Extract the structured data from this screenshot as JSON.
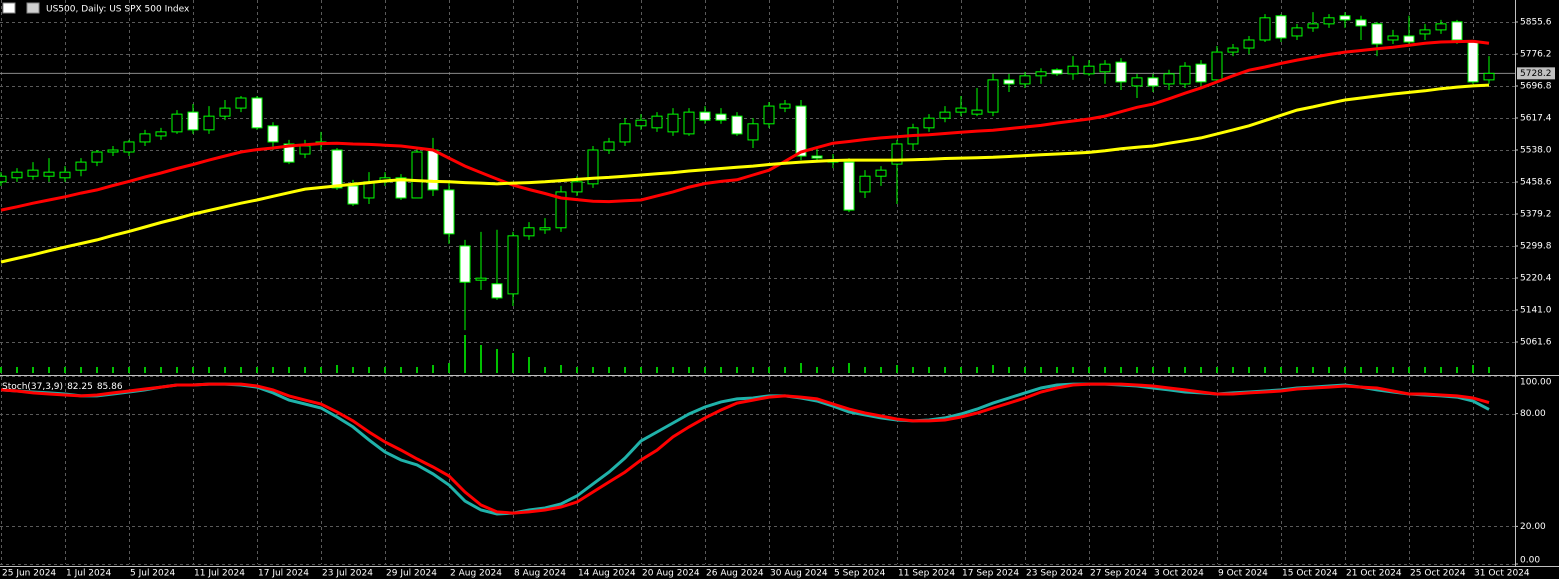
{
  "chart_data": [
    {
      "type": "candlestick",
      "title": "US500, Daily: US SPX 500 Index",
      "categories": [
        "25 Jun 2024",
        null,
        null,
        null,
        "1 Jul 2024",
        null,
        null,
        null,
        "5 Jul 2024",
        null,
        null,
        null,
        "11 Jul 2024",
        null,
        null,
        null,
        "17 Jul 2024",
        null,
        null,
        null,
        "23 Jul 2024",
        null,
        null,
        null,
        "29 Jul 2024",
        null,
        null,
        null,
        "2 Aug 2024",
        null,
        null,
        null,
        "8 Aug 2024",
        null,
        null,
        null,
        "14 Aug 2024",
        null,
        null,
        null,
        "20 Aug 2024",
        null,
        null,
        null,
        "26 Aug 2024",
        null,
        null,
        null,
        "30 Aug 2024",
        null,
        null,
        null,
        "5 Sep 2024",
        null,
        null,
        null,
        "11 Sep 2024",
        null,
        null,
        null,
        "17 Sep 2024",
        null,
        null,
        null,
        "23 Sep 2024",
        null,
        null,
        null,
        "27 Sep 2024",
        null,
        null,
        null,
        "3 Oct 2024",
        null,
        null,
        null,
        "9 Oct 2024",
        null,
        null,
        null,
        "15 Oct 2024",
        null,
        null,
        null,
        "21 Oct 2024",
        null,
        null,
        null,
        "25 Oct 2024",
        null,
        null,
        null,
        "31 Oct 2024",
        null
      ],
      "open": [
        5459,
        5469,
        5473,
        5473,
        5469,
        5488,
        5508,
        5533,
        5533,
        5558,
        5573,
        5583,
        5632,
        5588,
        5622,
        5642,
        5667,
        5598,
        5553,
        5528,
        5558,
        5538,
        5449,
        5419,
        5459,
        5469,
        5419,
        5538,
        5439,
        5300,
        5215,
        5206,
        5181,
        5325,
        5340,
        5345,
        5434,
        5454,
        5538,
        5558,
        5598,
        5593,
        5583,
        5578,
        5632,
        5627,
        5622,
        5563,
        5603,
        5642,
        5647,
        5523,
        5513,
        5508,
        5434,
        5473,
        5503,
        5553,
        5593,
        5617,
        5632,
        5627,
        5632,
        5712,
        5702,
        5722,
        5737,
        5727,
        5727,
        5732,
        5756,
        5697,
        5717,
        5702,
        5702,
        5751,
        5712,
        5781,
        5791,
        5811,
        5871,
        5821,
        5841,
        5851,
        5871,
        5861,
        5851,
        5811,
        5821,
        5826,
        5836,
        5856,
        5806,
        5712
      ],
      "high": [
        5483,
        5493,
        5508,
        5518,
        5498,
        5518,
        5538,
        5548,
        5563,
        5588,
        5593,
        5637,
        5652,
        5647,
        5662,
        5672,
        5672,
        5607,
        5563,
        5563,
        5583,
        5543,
        5464,
        5483,
        5483,
        5478,
        5543,
        5568,
        5459,
        5315,
        5335,
        5340,
        5335,
        5359,
        5369,
        5449,
        5473,
        5548,
        5568,
        5617,
        5627,
        5632,
        5642,
        5642,
        5647,
        5642,
        5632,
        5617,
        5657,
        5662,
        5662,
        5543,
        5528,
        5518,
        5488,
        5498,
        5563,
        5603,
        5627,
        5647,
        5672,
        5692,
        5727,
        5727,
        5732,
        5741,
        5741,
        5771,
        5761,
        5761,
        5766,
        5727,
        5727,
        5737,
        5756,
        5761,
        5796,
        5801,
        5821,
        5875,
        5875,
        5851,
        5880,
        5875,
        5880,
        5871,
        5856,
        5836,
        5871,
        5851,
        5861,
        5861,
        5811,
        5771
      ],
      "low": [
        5449,
        5459,
        5464,
        5459,
        5459,
        5473,
        5498,
        5523,
        5523,
        5548,
        5563,
        5578,
        5578,
        5578,
        5612,
        5632,
        5588,
        5538,
        5503,
        5518,
        5538,
        5439,
        5399,
        5404,
        5449,
        5414,
        5419,
        5424,
        5305,
        5091,
        5191,
        5166,
        5151,
        5315,
        5330,
        5335,
        5424,
        5444,
        5528,
        5548,
        5588,
        5583,
        5573,
        5573,
        5603,
        5603,
        5573,
        5543,
        5593,
        5632,
        5513,
        5508,
        5493,
        5384,
        5419,
        5449,
        5404,
        5538,
        5583,
        5607,
        5622,
        5622,
        5622,
        5682,
        5692,
        5702,
        5722,
        5712,
        5722,
        5702,
        5687,
        5667,
        5682,
        5687,
        5692,
        5697,
        5707,
        5771,
        5776,
        5806,
        5806,
        5811,
        5831,
        5841,
        5841,
        5811,
        5771,
        5801,
        5801,
        5811,
        5826,
        5801,
        5702,
        5702
      ],
      "close": [
        5473,
        5483,
        5488,
        5483,
        5483,
        5508,
        5533,
        5538,
        5558,
        5578,
        5583,
        5627,
        5588,
        5622,
        5642,
        5667,
        5593,
        5558,
        5508,
        5548,
        5558,
        5444,
        5404,
        5459,
        5469,
        5419,
        5533,
        5439,
        5330,
        5210,
        5220,
        5171,
        5325,
        5345,
        5345,
        5434,
        5459,
        5538,
        5558,
        5603,
        5612,
        5622,
        5627,
        5632,
        5612,
        5612,
        5578,
        5603,
        5647,
        5652,
        5523,
        5518,
        5508,
        5389,
        5473,
        5488,
        5553,
        5593,
        5617,
        5632,
        5642,
        5637,
        5712,
        5702,
        5722,
        5732,
        5727,
        5746,
        5746,
        5751,
        5707,
        5717,
        5697,
        5727,
        5746,
        5707,
        5781,
        5791,
        5811,
        5866,
        5816,
        5841,
        5851,
        5866,
        5861,
        5846,
        5801,
        5821,
        5806,
        5836,
        5851,
        5811,
        5707,
        5728.2
      ],
      "volume": [
        6,
        6,
        6,
        6,
        6,
        6,
        6,
        6,
        6,
        6,
        6,
        6,
        6,
        6,
        6,
        6,
        6,
        6,
        6,
        6,
        6,
        8,
        6,
        6,
        6,
        6,
        6,
        8,
        10,
        38,
        28,
        24,
        20,
        16,
        6,
        8,
        6,
        6,
        6,
        6,
        6,
        6,
        6,
        6,
        6,
        6,
        6,
        6,
        6,
        6,
        10,
        6,
        6,
        10,
        6,
        6,
        8,
        6,
        6,
        6,
        6,
        6,
        8,
        6,
        6,
        6,
        6,
        6,
        6,
        6,
        6,
        6,
        6,
        6,
        6,
        6,
        6,
        6,
        6,
        6,
        6,
        6,
        6,
        6,
        6,
        6,
        6,
        6,
        6,
        6,
        6,
        6,
        8,
        6
      ],
      "overlays": [
        {
          "color": "#ff0000",
          "values": [
            5389,
            5397,
            5406,
            5414,
            5422,
            5431,
            5439,
            5450,
            5460,
            5471,
            5481,
            5492,
            5502,
            5513,
            5523,
            5533,
            5539,
            5543,
            5548,
            5551,
            5554,
            5555,
            5553,
            5552,
            5550,
            5548,
            5543,
            5538,
            5518,
            5498,
            5482,
            5466,
            5451,
            5440,
            5430,
            5419,
            5415,
            5411,
            5410,
            5412,
            5414,
            5424,
            5434,
            5446,
            5455,
            5460,
            5464,
            5476,
            5488,
            5510,
            5533,
            5544,
            5555,
            5559,
            5564,
            5568,
            5571,
            5574,
            5576,
            5579,
            5582,
            5585,
            5587,
            5591,
            5595,
            5599,
            5605,
            5610,
            5615,
            5622,
            5633,
            5644,
            5652,
            5665,
            5679,
            5692,
            5707,
            5722,
            5736,
            5744,
            5753,
            5761,
            5768,
            5775,
            5781,
            5785,
            5789,
            5793,
            5798,
            5803,
            5806,
            5807,
            5808,
            5803
          ]
        },
        {
          "color": "#ffff00",
          "values": [
            5260,
            5269,
            5278,
            5288,
            5297,
            5306,
            5315,
            5326,
            5336,
            5347,
            5358,
            5368,
            5379,
            5388,
            5397,
            5406,
            5414,
            5423,
            5432,
            5441,
            5445,
            5449,
            5453,
            5457,
            5461,
            5464,
            5462,
            5460,
            5459,
            5457,
            5456,
            5454,
            5456,
            5457,
            5459,
            5462,
            5465,
            5468,
            5470,
            5473,
            5476,
            5479,
            5482,
            5486,
            5489,
            5492,
            5495,
            5498,
            5502,
            5505,
            5508,
            5510,
            5512,
            5513,
            5513,
            5513,
            5513,
            5514,
            5515,
            5517,
            5518,
            5519,
            5520,
            5522,
            5524,
            5526,
            5528,
            5530,
            5532,
            5536,
            5541,
            5545,
            5548,
            5555,
            5561,
            5568,
            5578,
            5588,
            5598,
            5611,
            5624,
            5637,
            5645,
            5654,
            5662,
            5667,
            5672,
            5677,
            5681,
            5685,
            5690,
            5694,
            5697,
            5699
          ]
        }
      ],
      "bull_color": "#000000",
      "bear_color": "#ffffff",
      "candle_color": "#00ff00",
      "volume_color": "#00c000",
      "ylim": [
        4982.2,
        5910.2
      ],
      "yticks": [
        5855.6,
        5776.2,
        5696.8,
        5617.4,
        {
          "value": 5538,
          "label": "5538.0"
        },
        5458.6,
        5379.2,
        5299.8,
        5220.4,
        {
          "value": 5141,
          "label": "5141.0"
        },
        5061.6
      ],
      "grid": true
    },
    {
      "type": "line",
      "title": "Stoch(37,3,9)",
      "series": [
        {
          "color": "#20b2aa",
          "values": [
            92.6,
            92.0,
            91.5,
            91.0,
            90.4,
            89.4,
            89.4,
            90.4,
            91.5,
            92.6,
            94.1,
            95.2,
            95.2,
            95.7,
            95.7,
            95.2,
            94.1,
            91.0,
            87.2,
            85.1,
            83.0,
            78.2,
            72.9,
            66.0,
            59.6,
            55.3,
            52.7,
            47.9,
            42.0,
            33.5,
            28.7,
            26.6,
            27.1,
            28.7,
            29.8,
            31.9,
            36.2,
            42.6,
            48.9,
            56.4,
            65.4,
            70.2,
            75.0,
            79.8,
            83.5,
            86.2,
            87.8,
            88.3,
            89.4,
            89.4,
            88.3,
            86.7,
            84.0,
            80.9,
            79.3,
            77.7,
            76.6,
            76.1,
            76.6,
            77.7,
            79.8,
            82.4,
            85.6,
            88.3,
            91.0,
            93.6,
            95.2,
            95.7,
            95.7,
            95.7,
            95.2,
            94.7,
            93.6,
            92.6,
            91.5,
            91.0,
            90.4,
            91.0,
            91.5,
            92.0,
            92.6,
            93.6,
            94.1,
            94.7,
            95.2,
            94.1,
            92.6,
            91.5,
            90.4,
            89.9,
            89.4,
            88.8,
            86.7,
            82.25
          ]
        },
        {
          "color": "#ff0000",
          "values": [
            92.6,
            92.0,
            91.0,
            90.4,
            89.9,
            89.4,
            89.9,
            91.0,
            92.0,
            93.1,
            94.1,
            95.2,
            95.2,
            95.7,
            95.7,
            95.7,
            94.7,
            92.6,
            89.4,
            87.2,
            85.1,
            80.9,
            76.1,
            70.2,
            64.9,
            60.6,
            55.9,
            51.6,
            46.8,
            38.3,
            31.4,
            27.7,
            27.1,
            27.7,
            28.7,
            30.3,
            33.0,
            38.3,
            43.6,
            48.9,
            55.3,
            60.6,
            67.6,
            72.9,
            77.7,
            81.9,
            85.6,
            87.2,
            88.8,
            89.4,
            88.8,
            87.8,
            85.1,
            82.4,
            80.3,
            78.7,
            77.1,
            76.1,
            76.1,
            76.6,
            78.2,
            80.3,
            83.0,
            85.6,
            88.3,
            91.5,
            93.6,
            95.2,
            95.7,
            95.7,
            95.7,
            95.2,
            94.7,
            93.6,
            92.6,
            91.5,
            90.4,
            90.4,
            91.0,
            91.5,
            92.0,
            93.1,
            93.6,
            94.1,
            94.7,
            94.1,
            93.6,
            92.0,
            90.4,
            90.4,
            89.9,
            89.4,
            88.3,
            85.86
          ]
        }
      ],
      "ylim": [
        0,
        100
      ],
      "yticks": [
        {
          "value": 100,
          "label": "100.00"
        },
        {
          "value": 80,
          "label": "80.00"
        },
        {
          "value": 20,
          "label": "20.00"
        },
        {
          "value": 0,
          "label": "0.00"
        }
      ],
      "grid": true
    }
  ]
}
